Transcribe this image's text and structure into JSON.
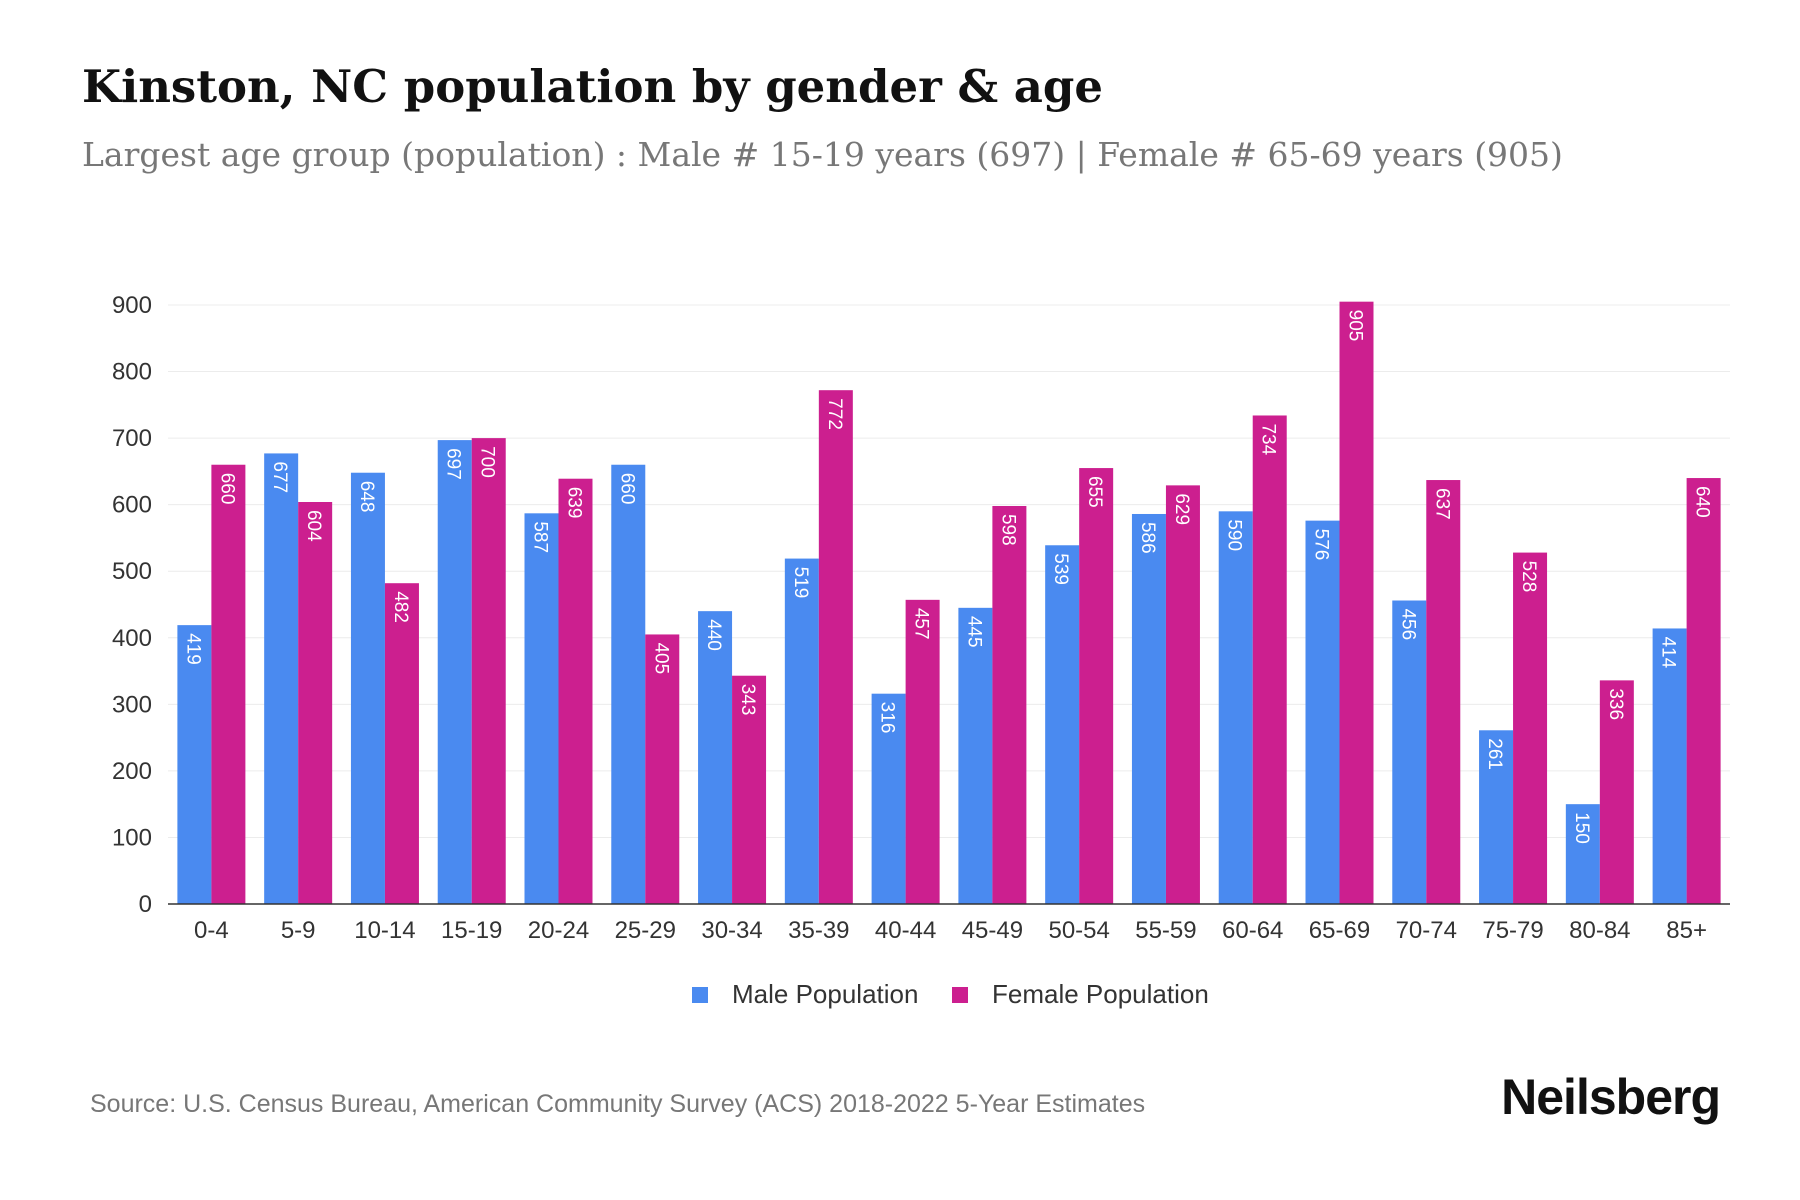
{
  "chart_data": {
    "type": "bar",
    "title": "Kinston, NC population by gender & age",
    "subtitle": "Largest age group (population) : Male # 15-19 years (697) | Female # 65-69 years (905)",
    "categories": [
      "0-4",
      "5-9",
      "10-14",
      "15-19",
      "20-24",
      "25-29",
      "30-34",
      "35-39",
      "40-44",
      "45-49",
      "50-54",
      "55-59",
      "60-64",
      "65-69",
      "70-74",
      "75-79",
      "80-84",
      "85+"
    ],
    "series": [
      {
        "name": "Male Population",
        "color": "#4a8af0",
        "values": [
          419,
          677,
          648,
          697,
          587,
          660,
          440,
          519,
          316,
          445,
          539,
          586,
          590,
          576,
          456,
          261,
          150,
          414
        ]
      },
      {
        "name": "Female Population",
        "color": "#cc1f8f",
        "values": [
          660,
          604,
          482,
          700,
          639,
          405,
          343,
          772,
          457,
          598,
          655,
          629,
          734,
          905,
          637,
          528,
          336,
          640
        ]
      }
    ],
    "ylim": [
      0,
      900
    ],
    "yticks": [
      0,
      100,
      200,
      300,
      400,
      500,
      600,
      700,
      800,
      900
    ],
    "xlabel": "",
    "ylabel": "",
    "legend": "bottom-center",
    "grid": true
  },
  "footer": {
    "source": "Source: U.S. Census Bureau, American Community Survey (ACS) 2018-2022 5-Year Estimates",
    "brand": "Neilsberg"
  }
}
